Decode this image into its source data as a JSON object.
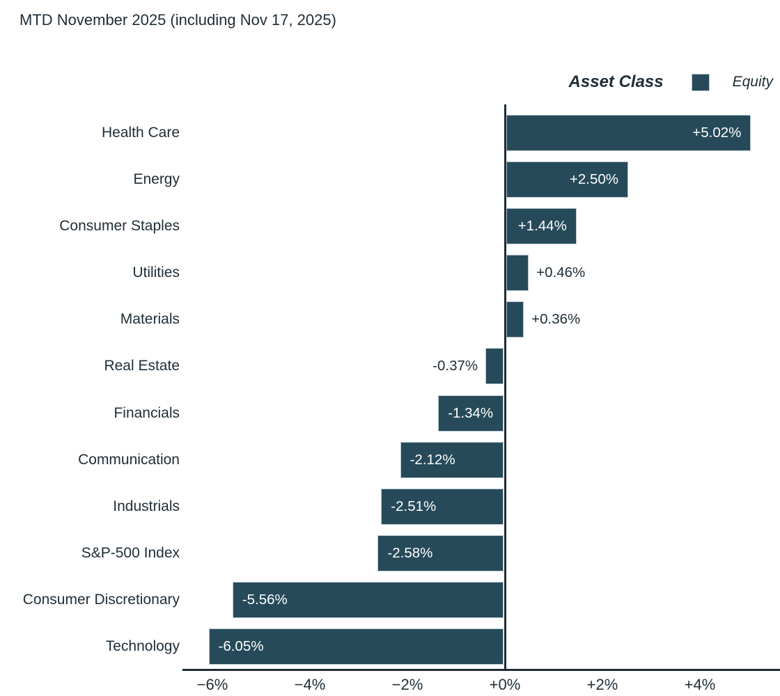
{
  "title": "MTD November 2025 (including Nov 17, 2025)",
  "chart_data": {
    "type": "bar",
    "orientation": "horizontal",
    "title": "MTD November 2025 (including Nov 17, 2025)",
    "legend": {
      "title": "Asset Class",
      "position": "top-right",
      "entries": [
        {
          "label": "Equity",
          "color": "#264a59"
        }
      ]
    },
    "categories": [
      "Health Care",
      "Energy",
      "Consumer Staples",
      "Utilities",
      "Materials",
      "Real Estate",
      "Financials",
      "Communication",
      "Industrials",
      "S&P-500 Index",
      "Consumer Discretionary",
      "Technology"
    ],
    "values": [
      5.02,
      2.5,
      1.44,
      0.46,
      0.36,
      -0.37,
      -1.34,
      -2.12,
      -2.51,
      -2.58,
      -5.56,
      -6.05
    ],
    "value_labels": [
      "+5.02%",
      "+2.50%",
      "+1.44%",
      "+0.46%",
      "+0.36%",
      "-0.37%",
      "-1.34%",
      "-2.12%",
      "-2.51%",
      "-2.58%",
      "-5.56%",
      "-6.05%"
    ],
    "x_ticks": {
      "values": [
        -6,
        -4,
        -2,
        0,
        2,
        4
      ],
      "labels": [
        "−6%",
        "−4%",
        "−2%",
        "+0%",
        "+2%",
        "+4%"
      ]
    },
    "xlim": [
      -6.6,
      5.65
    ],
    "xlabel": "",
    "ylabel": "",
    "grid": false,
    "bar_color": "#264a59",
    "bar_border_color": "#b9c8d1",
    "axis_color": "#1e2d36",
    "inside_label_color": "#ffffff",
    "outside_label_color": "#1e2d36"
  }
}
